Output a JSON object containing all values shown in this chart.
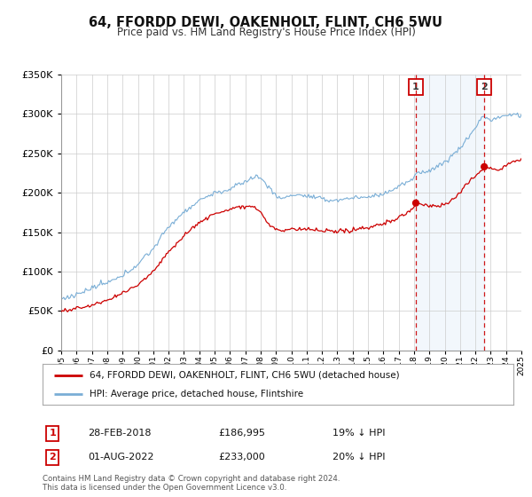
{
  "title": "64, FFORDD DEWI, OAKENHOLT, FLINT, CH6 5WU",
  "subtitle": "Price paid vs. HM Land Registry's House Price Index (HPI)",
  "legend_line1": "64, FFORDD DEWI, OAKENHOLT, FLINT, CH6 5WU (detached house)",
  "legend_line2": "HPI: Average price, detached house, Flintshire",
  "property_color": "#cc0000",
  "hpi_color": "#7aaed6",
  "shade_color": "#ddeeff",
  "marker1_date": 2018.12,
  "marker1_value": 186995,
  "marker1_label": "28-FEB-2018",
  "marker1_price": "£186,995",
  "marker1_pct": "19% ↓ HPI",
  "marker2_date": 2022.58,
  "marker2_value": 233000,
  "marker2_label": "01-AUG-2022",
  "marker2_price": "£233,000",
  "marker2_pct": "20% ↓ HPI",
  "vline_color": "#cc0000",
  "footnote1": "Contains HM Land Registry data © Crown copyright and database right 2024.",
  "footnote2": "This data is licensed under the Open Government Licence v3.0.",
  "ylim_max": 350000,
  "xlim_min": 1995,
  "xlim_max": 2025,
  "background_color": "#ffffff",
  "grid_color": "#cccccc"
}
